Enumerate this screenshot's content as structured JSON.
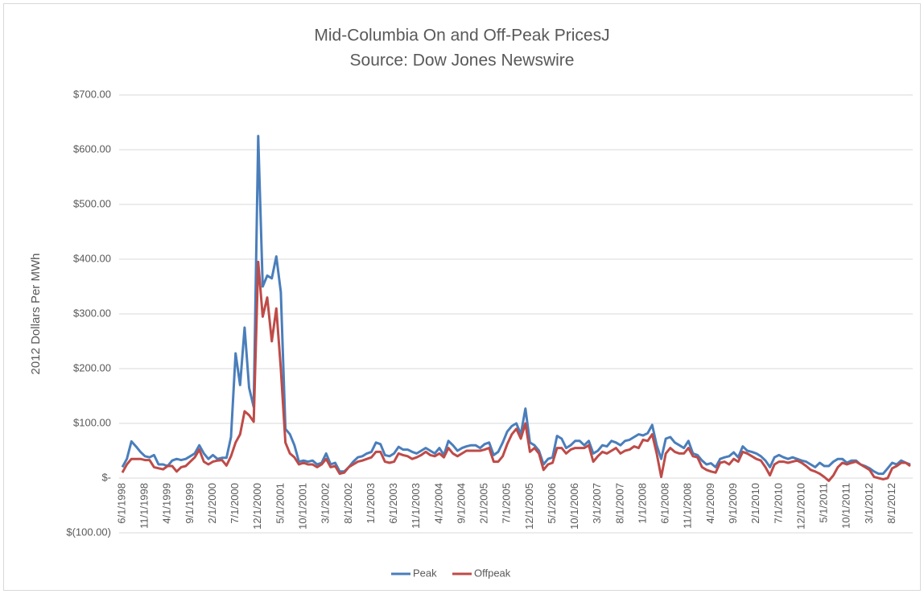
{
  "chart_data": {
    "type": "line",
    "title": "Mid-Columbia On and Off-Peak PricesJ",
    "subtitle": "Source: Dow Jones Newswire",
    "y_label": "2012 Dollars Per MWh",
    "categories": [
      "6/1/1998",
      null,
      null,
      null,
      null,
      "11/1/1998",
      null,
      null,
      null,
      null,
      "4/1/1999",
      null,
      null,
      null,
      null,
      "9/1/1999",
      null,
      null,
      null,
      null,
      "2/1/2000",
      null,
      null,
      null,
      null,
      "7/1/2000",
      null,
      null,
      null,
      null,
      "12/1/2000",
      null,
      null,
      null,
      null,
      "5/1/2001",
      null,
      null,
      null,
      null,
      "10/1/2001",
      null,
      null,
      null,
      null,
      "3/1/2002",
      null,
      null,
      null,
      null,
      "8/1/2002",
      null,
      null,
      null,
      null,
      "1/1/2003",
      null,
      null,
      null,
      null,
      "6/1/2003",
      null,
      null,
      null,
      null,
      "11/1/2003",
      null,
      null,
      null,
      null,
      "4/1/2004",
      null,
      null,
      null,
      null,
      "9/1/2004",
      null,
      null,
      null,
      null,
      "2/1/2005",
      null,
      null,
      null,
      null,
      "7/1/2005",
      null,
      null,
      null,
      null,
      "12/1/2005",
      null,
      null,
      null,
      null,
      "5/1/2006",
      null,
      null,
      null,
      null,
      "10/1/2006",
      null,
      null,
      null,
      null,
      "3/1/2007",
      null,
      null,
      null,
      null,
      "8/1/2007",
      null,
      null,
      null,
      null,
      "1/1/2008",
      null,
      null,
      null,
      null,
      "6/1/2008",
      null,
      null,
      null,
      null,
      "11/1/2008",
      null,
      null,
      null,
      null,
      "4/1/2009",
      null,
      null,
      null,
      null,
      "9/1/2009",
      null,
      null,
      null,
      null,
      "2/1/2010",
      null,
      null,
      null,
      null,
      "7/1/2010",
      null,
      null,
      null,
      null,
      "12/1/2010",
      null,
      null,
      null,
      null,
      "5/1/2011",
      null,
      null,
      null,
      null,
      "10/1/2011",
      null,
      null,
      null,
      null,
      "3/1/2012",
      null,
      null,
      null,
      null,
      "8/1/2012",
      null,
      null,
      null,
      null
    ],
    "series": [
      {
        "name": "Peak",
        "color": "#4a7ebb",
        "values": [
          20,
          35,
          67,
          58,
          48,
          40,
          38,
          42,
          25,
          25,
          22,
          32,
          35,
          33,
          35,
          40,
          45,
          60,
          45,
          35,
          42,
          35,
          37,
          37,
          75,
          228,
          170,
          275,
          165,
          130,
          625,
          350,
          370,
          365,
          405,
          340,
          90,
          80,
          60,
          30,
          32,
          30,
          32,
          25,
          28,
          45,
          25,
          28,
          12,
          12,
          20,
          30,
          38,
          40,
          45,
          48,
          65,
          62,
          42,
          40,
          45,
          57,
          52,
          52,
          48,
          45,
          50,
          55,
          50,
          45,
          55,
          42,
          68,
          60,
          50,
          55,
          58,
          60,
          60,
          55,
          62,
          65,
          42,
          48,
          65,
          85,
          95,
          100,
          80,
          127,
          65,
          60,
          50,
          25,
          35,
          38,
          77,
          72,
          55,
          60,
          68,
          68,
          60,
          68,
          45,
          50,
          60,
          58,
          68,
          65,
          60,
          68,
          70,
          75,
          80,
          78,
          82,
          97,
          60,
          35,
          72,
          75,
          65,
          60,
          55,
          68,
          45,
          42,
          32,
          25,
          27,
          20,
          35,
          38,
          40,
          47,
          38,
          58,
          50,
          48,
          45,
          40,
          32,
          20,
          38,
          42,
          38,
          35,
          38,
          35,
          32,
          30,
          25,
          20,
          28,
          22,
          22,
          30,
          35,
          35,
          28,
          32,
          32,
          25,
          22,
          18,
          12,
          8,
          8,
          18,
          28,
          25,
          32,
          28,
          25
        ]
      },
      {
        "name": "Offpeak",
        "color": "#be4b48",
        "values": [
          10,
          25,
          35,
          35,
          35,
          33,
          33,
          20,
          18,
          16,
          22,
          22,
          12,
          20,
          22,
          30,
          38,
          52,
          30,
          25,
          30,
          32,
          33,
          23,
          40,
          65,
          80,
          122,
          115,
          103,
          395,
          295,
          330,
          250,
          310,
          200,
          65,
          45,
          38,
          25,
          28,
          25,
          25,
          20,
          25,
          35,
          20,
          22,
          8,
          10,
          20,
          25,
          30,
          32,
          35,
          38,
          48,
          48,
          30,
          28,
          30,
          45,
          42,
          40,
          35,
          38,
          42,
          48,
          42,
          40,
          45,
          38,
          55,
          45,
          40,
          45,
          50,
          50,
          50,
          50,
          52,
          55,
          30,
          30,
          40,
          62,
          80,
          90,
          72,
          100,
          48,
          55,
          45,
          15,
          25,
          28,
          55,
          55,
          45,
          52,
          55,
          55,
          55,
          60,
          30,
          40,
          48,
          45,
          50,
          55,
          45,
          50,
          52,
          58,
          55,
          70,
          68,
          80,
          45,
          2,
          45,
          55,
          48,
          45,
          45,
          55,
          40,
          38,
          20,
          15,
          12,
          10,
          28,
          30,
          25,
          35,
          30,
          48,
          45,
          40,
          35,
          32,
          20,
          5,
          25,
          30,
          30,
          28,
          30,
          32,
          28,
          22,
          15,
          12,
          8,
          2,
          -5,
          5,
          20,
          28,
          25,
          28,
          30,
          25,
          20,
          15,
          2,
          0,
          -2,
          0,
          18,
          22,
          28,
          28,
          22
        ]
      }
    ],
    "ylim": [
      -100,
      700
    ],
    "yticks": [
      {
        "value": -100,
        "label": "$(100.00)"
      },
      {
        "value": 0,
        "label": "$-"
      },
      {
        "value": 100,
        "label": "$100.00"
      },
      {
        "value": 200,
        "label": "$200.00"
      },
      {
        "value": 300,
        "label": "$300.00"
      },
      {
        "value": 400,
        "label": "$400.00"
      },
      {
        "value": 500,
        "label": "$500.00"
      },
      {
        "value": 600,
        "label": "$600.00"
      },
      {
        "value": 700,
        "label": "$700.00"
      }
    ],
    "grid": true,
    "legend": "bottom"
  }
}
